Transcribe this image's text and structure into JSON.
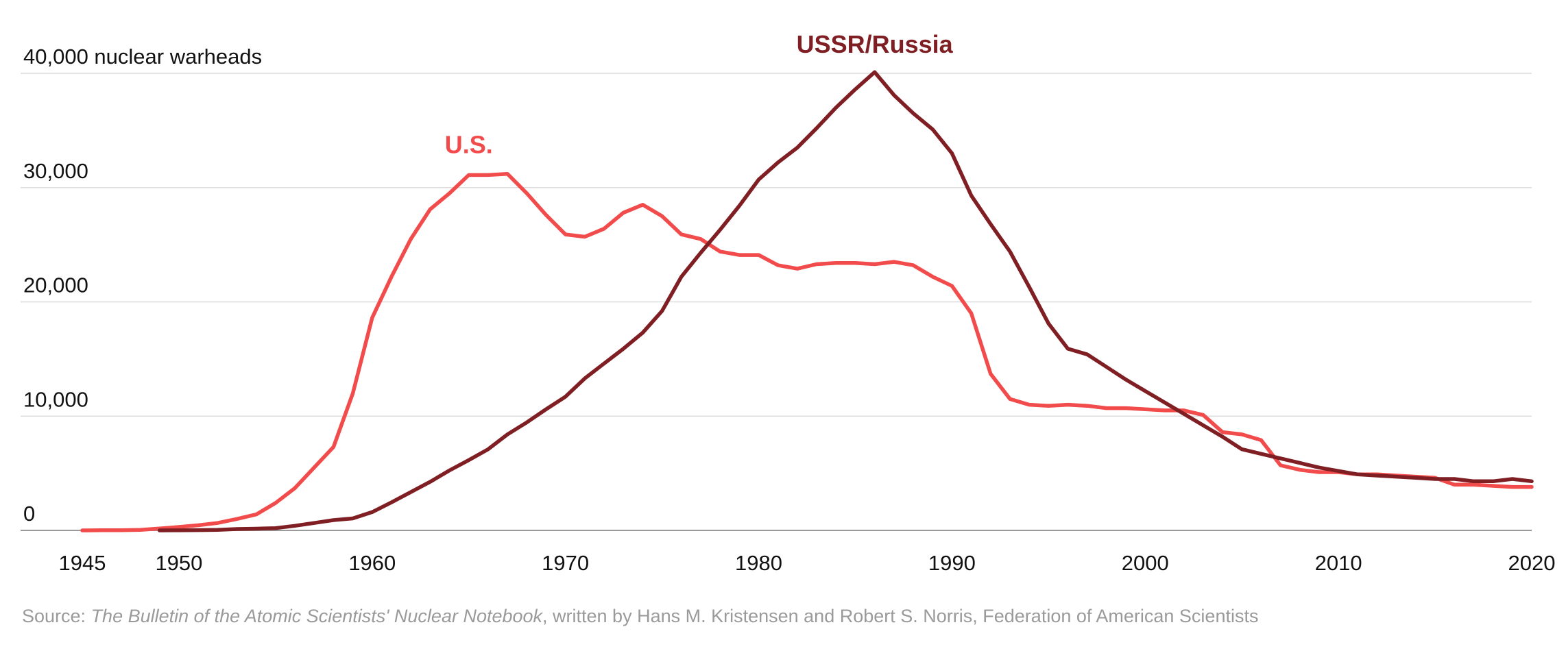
{
  "chart_data": {
    "type": "line",
    "title": "",
    "xlabel": "",
    "ylabel": "",
    "xlim": [
      1945,
      2020
    ],
    "ylim": [
      0,
      40000
    ],
    "x_ticks": [
      1945,
      1950,
      1960,
      1970,
      1980,
      1990,
      2000,
      2010,
      2020
    ],
    "y_ticks": [
      0,
      10000,
      20000,
      30000,
      40000
    ],
    "y_tick_labels": [
      "0",
      "10,000",
      "20,000",
      "30,000",
      "40,000 nuclear warheads"
    ],
    "grid": "horizontal",
    "legend": "none",
    "series": [
      {
        "name": "U.S.",
        "color": "#f24b4b",
        "label_year": 1965,
        "label_value": 33000,
        "points": [
          [
            1945,
            2
          ],
          [
            1946,
            9
          ],
          [
            1947,
            13
          ],
          [
            1948,
            50
          ],
          [
            1949,
            170
          ],
          [
            1950,
            300
          ],
          [
            1951,
            450
          ],
          [
            1952,
            650
          ],
          [
            1953,
            1000
          ],
          [
            1954,
            1400
          ],
          [
            1955,
            2400
          ],
          [
            1956,
            3700
          ],
          [
            1957,
            5500
          ],
          [
            1958,
            7300
          ],
          [
            1959,
            12000
          ],
          [
            1960,
            18600
          ],
          [
            1961,
            22200
          ],
          [
            1962,
            25500
          ],
          [
            1963,
            28100
          ],
          [
            1964,
            29500
          ],
          [
            1965,
            31100
          ],
          [
            1966,
            31100
          ],
          [
            1967,
            31200
          ],
          [
            1968,
            29500
          ],
          [
            1969,
            27600
          ],
          [
            1970,
            25900
          ],
          [
            1971,
            25700
          ],
          [
            1972,
            26400
          ],
          [
            1973,
            27800
          ],
          [
            1974,
            28500
          ],
          [
            1975,
            27500
          ],
          [
            1976,
            25900
          ],
          [
            1977,
            25500
          ],
          [
            1978,
            24400
          ],
          [
            1979,
            24100
          ],
          [
            1980,
            24100
          ],
          [
            1981,
            23200
          ],
          [
            1982,
            22900
          ],
          [
            1983,
            23300
          ],
          [
            1984,
            23400
          ],
          [
            1985,
            23400
          ],
          [
            1986,
            23300
          ],
          [
            1987,
            23500
          ],
          [
            1988,
            23200
          ],
          [
            1989,
            22200
          ],
          [
            1990,
            21400
          ],
          [
            1991,
            19000
          ],
          [
            1992,
            13700
          ],
          [
            1993,
            11500
          ],
          [
            1994,
            11000
          ],
          [
            1995,
            10900
          ],
          [
            1996,
            11000
          ],
          [
            1997,
            10900
          ],
          [
            1998,
            10700
          ],
          [
            1999,
            10700
          ],
          [
            2000,
            10600
          ],
          [
            2001,
            10500
          ],
          [
            2002,
            10500
          ],
          [
            2003,
            10100
          ],
          [
            2004,
            8600
          ],
          [
            2005,
            8400
          ],
          [
            2006,
            7900
          ],
          [
            2007,
            5700
          ],
          [
            2008,
            5300
          ],
          [
            2009,
            5100
          ],
          [
            2010,
            5100
          ],
          [
            2011,
            4900
          ],
          [
            2012,
            4900
          ],
          [
            2013,
            4800
          ],
          [
            2014,
            4700
          ],
          [
            2015,
            4600
          ],
          [
            2016,
            4000
          ],
          [
            2017,
            4000
          ],
          [
            2018,
            3900
          ],
          [
            2019,
            3800
          ],
          [
            2020,
            3800
          ]
        ]
      },
      {
        "name": "USSR/Russia",
        "color": "#7f1f24",
        "label_year": 1986,
        "label_value": 41800,
        "points": [
          [
            1949,
            1
          ],
          [
            1950,
            5
          ],
          [
            1951,
            25
          ],
          [
            1952,
            50
          ],
          [
            1953,
            120
          ],
          [
            1954,
            150
          ],
          [
            1955,
            200
          ],
          [
            1956,
            400
          ],
          [
            1957,
            650
          ],
          [
            1958,
            900
          ],
          [
            1959,
            1050
          ],
          [
            1960,
            1600
          ],
          [
            1961,
            2450
          ],
          [
            1962,
            3350
          ],
          [
            1963,
            4250
          ],
          [
            1964,
            5250
          ],
          [
            1965,
            6150
          ],
          [
            1966,
            7100
          ],
          [
            1967,
            8400
          ],
          [
            1968,
            9450
          ],
          [
            1969,
            10600
          ],
          [
            1970,
            11700
          ],
          [
            1971,
            13300
          ],
          [
            1972,
            14600
          ],
          [
            1973,
            15900
          ],
          [
            1974,
            17300
          ],
          [
            1975,
            19200
          ],
          [
            1976,
            22200
          ],
          [
            1977,
            24300
          ],
          [
            1978,
            26300
          ],
          [
            1979,
            28400
          ],
          [
            1980,
            30700
          ],
          [
            1981,
            32200
          ],
          [
            1982,
            33500
          ],
          [
            1983,
            35200
          ],
          [
            1984,
            37000
          ],
          [
            1985,
            38600
          ],
          [
            1986,
            40100
          ],
          [
            1987,
            38100
          ],
          [
            1988,
            36500
          ],
          [
            1989,
            35100
          ],
          [
            1990,
            33000
          ],
          [
            1991,
            29300
          ],
          [
            1992,
            26800
          ],
          [
            1993,
            24400
          ],
          [
            1994,
            21300
          ],
          [
            1995,
            18100
          ],
          [
            1996,
            15900
          ],
          [
            1997,
            15400
          ],
          [
            1998,
            14300
          ],
          [
            1999,
            13200
          ],
          [
            2000,
            12200
          ],
          [
            2001,
            11200
          ],
          [
            2002,
            10200
          ],
          [
            2003,
            9200
          ],
          [
            2004,
            8200
          ],
          [
            2005,
            7100
          ],
          [
            2006,
            6700
          ],
          [
            2007,
            6300
          ],
          [
            2008,
            5900
          ],
          [
            2009,
            5500
          ],
          [
            2010,
            5200
          ],
          [
            2011,
            4900
          ],
          [
            2012,
            4800
          ],
          [
            2013,
            4700
          ],
          [
            2014,
            4600
          ],
          [
            2015,
            4500
          ],
          [
            2016,
            4500
          ],
          [
            2017,
            4300
          ],
          [
            2018,
            4300
          ],
          [
            2019,
            4500
          ],
          [
            2020,
            4300
          ]
        ]
      }
    ]
  },
  "source": {
    "prefix": "Source: ",
    "publication": "The Bulletin of the Atomic Scientists' Nuclear Notebook",
    "suffix": ", written by Hans M. Kristensen and Robert S. Norris, Federation of American Scientists"
  }
}
